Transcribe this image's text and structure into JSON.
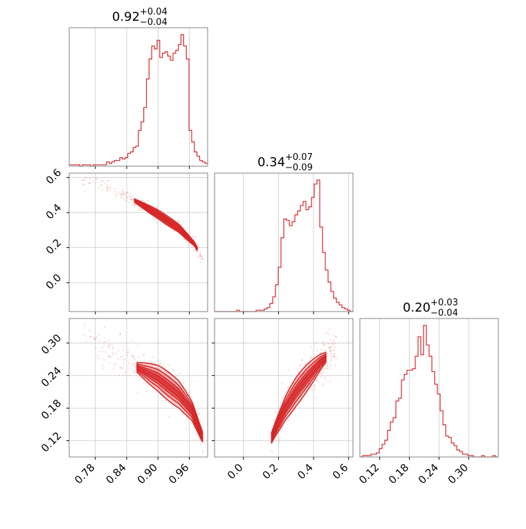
{
  "chart_data": {
    "type": "corner",
    "color": "#d62728",
    "parameters": [
      {
        "title_value": "0.92",
        "title_plus": "+0.04",
        "title_minus": "−0.04",
        "range": [
          0.73,
          0.995
        ],
        "ticks": [
          0.78,
          0.84,
          0.9,
          0.96
        ],
        "tick_labels": [
          "0.78",
          "0.84",
          "0.90",
          "0.96"
        ],
        "hist_edges": [
          0.73,
          0.995
        ],
        "hist_counts": [
          1,
          1,
          1,
          1,
          0,
          1,
          1,
          1,
          0,
          1,
          1,
          1,
          1,
          1,
          3,
          2,
          3,
          4,
          4,
          6,
          5,
          6,
          9,
          10,
          13,
          14,
          25,
          31,
          41,
          61,
          75,
          84,
          82,
          88,
          76,
          79,
          80,
          77,
          74,
          79,
          81,
          85,
          92,
          84,
          75,
          25,
          17,
          10,
          7,
          4,
          3,
          2
        ]
      },
      {
        "title_value": "0.34",
        "title_plus": "+0.07",
        "title_minus": "−0.09",
        "range": [
          -0.165,
          0.625
        ],
        "ticks": [
          0.0,
          0.2,
          0.4,
          0.6
        ],
        "tick_labels": [
          "0.0",
          "0.2",
          "0.4",
          "0.6"
        ],
        "hist_edges": [
          -0.165,
          0.625
        ],
        "hist_counts": [
          0,
          0,
          0,
          0,
          0,
          0,
          0,
          0,
          1,
          0,
          0,
          0,
          0,
          0,
          0,
          1,
          1,
          1,
          2,
          3,
          6,
          11,
          20,
          33,
          55,
          69,
          68,
          64,
          67,
          72,
          75,
          79,
          82,
          76,
          78,
          85,
          95,
          98,
          63,
          44,
          31,
          22,
          15,
          10,
          7,
          5,
          3,
          2,
          1,
          0
        ]
      },
      {
        "title_value": "0.20",
        "title_plus": "+0.03",
        "title_minus": "−0.04",
        "range": [
          0.08,
          0.36
        ],
        "ticks": [
          0.12,
          0.18,
          0.24,
          0.3
        ],
        "tick_labels": [
          "0.12",
          "0.18",
          "0.24",
          "0.30"
        ],
        "hist_edges": [
          0.08,
          0.36
        ],
        "hist_counts": [
          0,
          1,
          1,
          1,
          2,
          2,
          3,
          6,
          9,
          12,
          19,
          25,
          28,
          40,
          42,
          55,
          59,
          62,
          62,
          63,
          72,
          86,
          73,
          94,
          80,
          72,
          61,
          52,
          45,
          33,
          23,
          15,
          14,
          10,
          8,
          5,
          4,
          2,
          2,
          1,
          1,
          0,
          0,
          0,
          1,
          0,
          0,
          0,
          1,
          0
        ]
      }
    ],
    "pairs": [
      {
        "row": 1,
        "col": 0,
        "ylim": [
          -0.165,
          0.625
        ],
        "trend": [
          [
            0.75,
            0.6
          ],
          [
            0.82,
            0.52
          ],
          [
            0.86,
            0.46
          ],
          [
            0.9,
            0.39
          ],
          [
            0.94,
            0.31
          ],
          [
            0.97,
            0.22
          ],
          [
            0.985,
            0.14
          ]
        ],
        "spread_y": 0.012,
        "contour_x": [
          0.855,
          0.975
        ]
      },
      {
        "row": 2,
        "col": 0,
        "ylim": [
          0.09,
          0.345
        ],
        "trend": [
          [
            0.755,
            0.315
          ],
          [
            0.8,
            0.285
          ],
          [
            0.86,
            0.255
          ],
          [
            0.9,
            0.235
          ],
          [
            0.94,
            0.205
          ],
          [
            0.965,
            0.175
          ],
          [
            0.99,
            0.115
          ]
        ],
        "spread_y": 0.012,
        "contour_x": [
          0.86,
          0.985
        ]
      },
      {
        "row": 2,
        "col": 1,
        "ylim": [
          0.09,
          0.345
        ],
        "trend": [
          [
            0.14,
            0.11
          ],
          [
            0.18,
            0.14
          ],
          [
            0.24,
            0.18
          ],
          [
            0.3,
            0.21
          ],
          [
            0.36,
            0.235
          ],
          [
            0.44,
            0.265
          ],
          [
            0.53,
            0.29
          ]
        ],
        "spread_y": 0.012,
        "contour_x": [
          0.16,
          0.47
        ]
      }
    ]
  }
}
